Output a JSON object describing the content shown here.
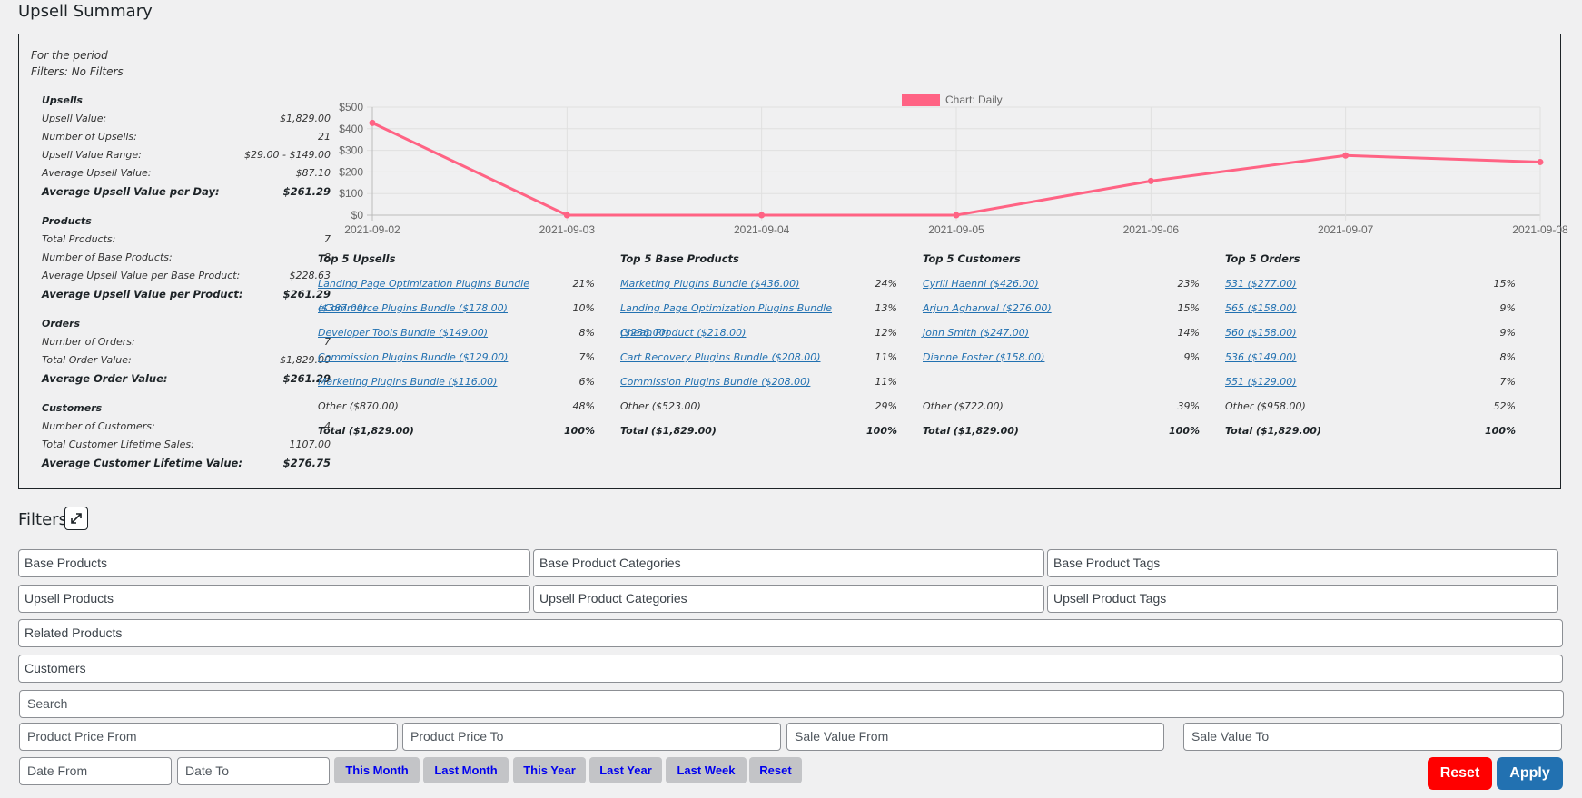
{
  "page": {
    "title": "Upsell Summary"
  },
  "period": {
    "line1": "For the period",
    "line2": "Filters: No Filters"
  },
  "stats": [
    {
      "heading": "Upsells",
      "rows": [
        {
          "label": "Upsell Value:",
          "value": "$1,829.00"
        },
        {
          "label": "Number of Upsells:",
          "value": "21"
        },
        {
          "label": "Upsell Value Range:",
          "value": "$29.00 - $149.00"
        },
        {
          "label": "Average Upsell Value:",
          "value": "$87.10"
        },
        {
          "label": "Average Upsell Value per Day:",
          "value": "$261.29",
          "bold": true
        }
      ]
    },
    {
      "heading": "Products",
      "rows": [
        {
          "label": "Total Products:",
          "value": "7"
        },
        {
          "label": "Number of Base Products:",
          "value": "8"
        },
        {
          "label": "Average Upsell Value per Base Product:",
          "value": "$228.63"
        },
        {
          "label": "Average Upsell Value per Product:",
          "value": "$261.29",
          "bold": true
        }
      ]
    },
    {
      "heading": "Orders",
      "rows": [
        {
          "label": "Number of Orders:",
          "value": "7"
        },
        {
          "label": "Total Order Value:",
          "value": "$1,829.00"
        },
        {
          "label": "Average Order Value:",
          "value": "$261.29",
          "bold": true
        }
      ]
    },
    {
      "heading": "Customers",
      "rows": [
        {
          "label": "Number of Customers:",
          "value": "4"
        },
        {
          "label": "Total Customer Lifetime Sales:",
          "value": "1107.00"
        },
        {
          "label": "Average Customer Lifetime Value:",
          "value": "$276.75",
          "bold": true
        }
      ]
    }
  ],
  "chart_data": {
    "type": "line",
    "legend": "Chart: Daily",
    "legend_position": "top-center",
    "categories": [
      "2021-09-02",
      "2021-09-03",
      "2021-09-04",
      "2021-09-05",
      "2021-09-06",
      "2021-09-07",
      "2021-09-08"
    ],
    "series": [
      {
        "name": "Chart: Daily",
        "values": [
          427,
          0,
          0,
          0,
          158,
          276,
          246
        ],
        "color": "#ff6384"
      }
    ],
    "yticks": [
      "$0",
      "$100",
      "$200",
      "$300",
      "$400",
      "$500"
    ],
    "ylim": [
      0,
      500
    ],
    "grid": true
  },
  "tops": [
    {
      "heading": "Top 5 Upsells",
      "rows": [
        {
          "label": "Landing Page Optimization Plugins Bundle ($387.00)",
          "pct": "21%",
          "link": true
        },
        {
          "label": "eCommerce Plugins Bundle ($178.00)",
          "pct": "10%",
          "link": true
        },
        {
          "label": "Developer Tools Bundle ($149.00)",
          "pct": "8%",
          "link": true
        },
        {
          "label": "Commission Plugins Bundle ($129.00)",
          "pct": "7%",
          "link": true
        },
        {
          "label": "Marketing Plugins Bundle ($116.00)",
          "pct": "6%",
          "link": true
        },
        {
          "label": "Other  ($870.00)",
          "pct": "48%",
          "link": false
        },
        {
          "label": "Total  ($1,829.00)",
          "pct": "100%",
          "link": false,
          "total": true
        }
      ]
    },
    {
      "heading": "Top 5 Base Products",
      "rows": [
        {
          "label": "Marketing Plugins Bundle ($436.00)",
          "pct": "24%",
          "link": true
        },
        {
          "label": "Landing Page Optimization Plugins Bundle ($236.00)",
          "pct": "13%",
          "link": true
        },
        {
          "label": "Cheap Product ($218.00)",
          "pct": "12%",
          "link": true
        },
        {
          "label": "Cart Recovery Plugins Bundle ($208.00)",
          "pct": "11%",
          "link": true
        },
        {
          "label": "Commission Plugins Bundle ($208.00)",
          "pct": "11%",
          "link": true
        },
        {
          "label": "Other  ($523.00)",
          "pct": "29%",
          "link": false
        },
        {
          "label": "Total  ($1,829.00)",
          "pct": "100%",
          "link": false,
          "total": true
        }
      ]
    },
    {
      "heading": "Top 5 Customers",
      "rows": [
        {
          "label": "Cyrill Haenni ($426.00)",
          "pct": "23%",
          "link": true
        },
        {
          "label": "Arjun Agharwal ($276.00)",
          "pct": "15%",
          "link": true
        },
        {
          "label": "John Smith ($247.00)",
          "pct": "14%",
          "link": true
        },
        {
          "label": "Dianne Foster ($158.00)",
          "pct": "9%",
          "link": true
        },
        {
          "label": "",
          "pct": "",
          "link": false
        },
        {
          "label": "Other  ($722.00)",
          "pct": "39%",
          "link": false
        },
        {
          "label": "Total  ($1,829.00)",
          "pct": "100%",
          "link": false,
          "total": true
        }
      ]
    },
    {
      "heading": "Top 5 Orders",
      "rows": [
        {
          "label": "531 ($277.00)",
          "pct": "15%",
          "link": true
        },
        {
          "label": "565 ($158.00)",
          "pct": "9%",
          "link": true
        },
        {
          "label": "560 ($158.00)",
          "pct": "9%",
          "link": true
        },
        {
          "label": "536 ($149.00)",
          "pct": "8%",
          "link": true
        },
        {
          "label": "551 ($129.00)",
          "pct": "7%",
          "link": true
        },
        {
          "label": "Other  ($958.00)",
          "pct": "52%",
          "link": false
        },
        {
          "label": "Total  ($1,829.00)",
          "pct": "100%",
          "link": false,
          "total": true
        }
      ]
    }
  ],
  "filters": {
    "title": "Filters",
    "base_products": "Base Products",
    "base_product_categories": "Base Product Categories",
    "base_product_tags": "Base Product Tags",
    "upsell_products": "Upsell Products",
    "upsell_product_categories": "Upsell Product Categories",
    "upsell_product_tags": "Upsell Product Tags",
    "related_products": "Related Products",
    "customers": "Customers",
    "search": "Search",
    "price_from": "Product Price From",
    "price_to": "Product Price To",
    "sale_from": "Sale Value From",
    "sale_to": "Sale Value To",
    "date_from": "Date From",
    "date_to": "Date To",
    "quick": [
      "This Month",
      "Last Month",
      "This Year",
      "Last Year",
      "Last Week",
      "Reset"
    ],
    "reset_label": "Reset",
    "apply_label": "Apply"
  },
  "icons": {
    "expand": "expand-icon"
  }
}
